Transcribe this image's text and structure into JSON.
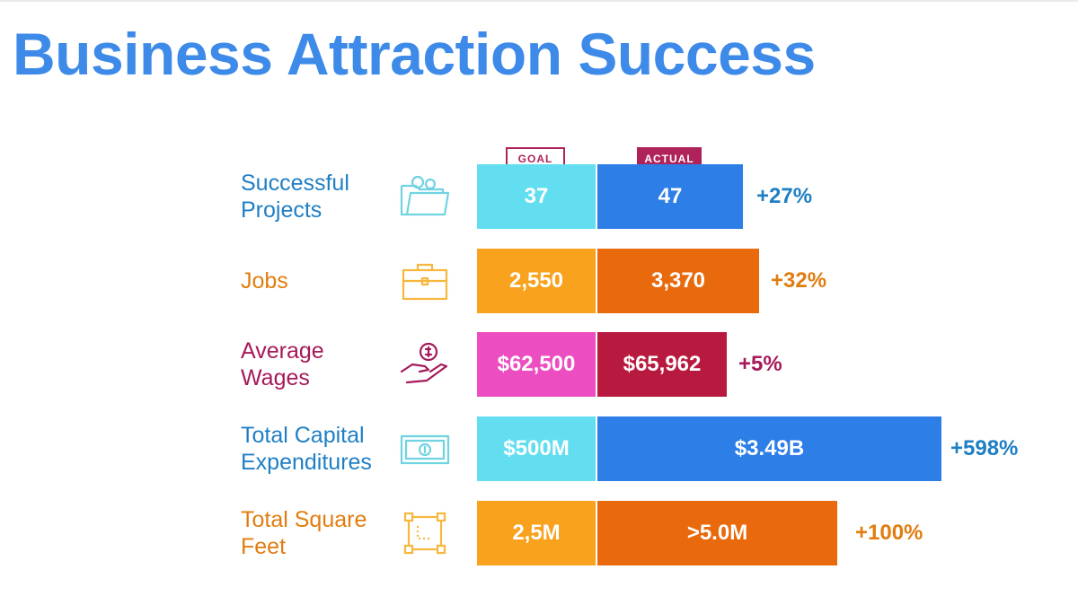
{
  "title": "Business Attraction Success",
  "legend": {
    "goal": "GOAL",
    "actual": "ACTUAL"
  },
  "rows": [
    {
      "label": "Successful Projects",
      "icon": "folder-gears-icon",
      "goal": "37",
      "actual": "47",
      "change": "+27%"
    },
    {
      "label": "Jobs",
      "icon": "briefcase-icon",
      "goal": "2,550",
      "actual": "3,370",
      "change": "+32%"
    },
    {
      "label": "Average Wages",
      "icon": "hand-coin-icon",
      "goal": "$62,500",
      "actual": "$65,962",
      "change": "+5%"
    },
    {
      "label": "Total Capital Expenditures",
      "icon": "banknote-icon",
      "goal": "$500M",
      "actual": "$3.49B",
      "change": "+598%"
    },
    {
      "label": "Total Square Feet",
      "icon": "square-area-icon",
      "goal": "2,5M",
      "actual": ">5.0M",
      "change": "+100%"
    }
  ],
  "colors": {
    "title": "#3d8ae8",
    "projects": {
      "label": "#1f7fc4",
      "goal": "#62def0",
      "actual": "#2e7ee8"
    },
    "jobs": {
      "label": "#e17d10",
      "goal": "#f8a21e",
      "actual": "#e86a0c"
    },
    "wages": {
      "label": "#a6195a",
      "goal": "#ec4ec2",
      "actual": "#b81a3f"
    },
    "capex": {
      "label": "#1f7fc4",
      "goal": "#62def0",
      "actual": "#2e7ee8"
    },
    "sqft": {
      "label": "#e17d10",
      "goal": "#f8a21e",
      "actual": "#e86a0c"
    }
  },
  "chart_data": {
    "type": "bar",
    "title": "Business Attraction Success",
    "categories": [
      "Successful Projects",
      "Jobs",
      "Average Wages",
      "Total Capital Expenditures",
      "Total Square Feet"
    ],
    "series": [
      {
        "name": "GOAL",
        "values": [
          "37",
          "2,550",
          "$62,500",
          "$500M",
          "2,5M"
        ]
      },
      {
        "name": "ACTUAL",
        "values": [
          "47",
          "3,370",
          "$65,962",
          "$3.49B",
          ">5.0M"
        ]
      }
    ],
    "change": [
      "+27%",
      "+32%",
      "+5%",
      "+598%",
      "+100%"
    ],
    "actual_to_goal_ratio": [
      1.27,
      1.32,
      1.05,
      6.98,
      2.0
    ]
  }
}
